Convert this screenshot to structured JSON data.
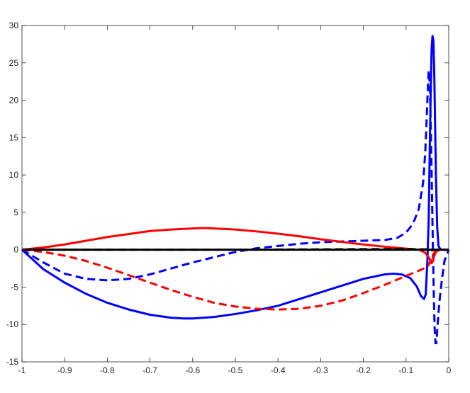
{
  "chart_data": {
    "type": "line",
    "title": "",
    "xlabel": "",
    "ylabel": "",
    "xlim": [
      -1,
      0
    ],
    "ylim": [
      -15,
      30
    ],
    "xticks": [
      -1,
      -0.9,
      -0.8,
      -0.7,
      -0.6,
      -0.5,
      -0.4,
      -0.3,
      -0.2,
      -0.1,
      0
    ],
    "xtick_labels": [
      "-1",
      "-0.9",
      "-0.8",
      "-0.7",
      "-0.6",
      "-0.5",
      "-0.4",
      "-0.3",
      "-0.2",
      "-0.1",
      "0"
    ],
    "yticks": [
      -15,
      -10,
      -5,
      0,
      5,
      10,
      15,
      20,
      25,
      30
    ],
    "ytick_labels": [
      "-15",
      "-10",
      "-5",
      "0",
      "5",
      "10",
      "15",
      "20",
      "25",
      "30"
    ],
    "grid": false,
    "legend": "none",
    "series": [
      {
        "color": "#0000ff",
        "style": "solid",
        "x": [
          -1,
          -0.95,
          -0.9,
          -0.85,
          -0.8,
          -0.75,
          -0.7,
          -0.65,
          -0.62,
          -0.6,
          -0.55,
          -0.5,
          -0.45,
          -0.4,
          -0.35,
          -0.3,
          -0.25,
          -0.2,
          -0.15,
          -0.13,
          -0.11,
          -0.09,
          -0.075,
          -0.065,
          -0.058,
          -0.054,
          -0.05,
          -0.047,
          -0.044,
          -0.042,
          -0.04,
          -0.038,
          -0.036,
          -0.034,
          -0.032,
          -0.03,
          -0.027,
          -0.024,
          -0.02,
          -0.015,
          -0.01,
          0
        ],
        "y": [
          0,
          -2.6,
          -4.4,
          -5.9,
          -7.1,
          -8.0,
          -8.7,
          -9.1,
          -9.2,
          -9.2,
          -9.0,
          -8.6,
          -8.1,
          -7.5,
          -6.6,
          -5.7,
          -4.8,
          -3.9,
          -3.3,
          -3.2,
          -3.3,
          -3.8,
          -4.9,
          -6.2,
          -6.6,
          -6.0,
          -1.5,
          4.0,
          15.0,
          22.0,
          27.0,
          28.6,
          28.0,
          24.0,
          17.0,
          10.0,
          3.0,
          0.5,
          0.1,
          0,
          0,
          0
        ]
      },
      {
        "color": "#0000ff",
        "style": "dashed",
        "x": [
          -1,
          -0.95,
          -0.9,
          -0.85,
          -0.8,
          -0.75,
          -0.7,
          -0.65,
          -0.6,
          -0.55,
          -0.5,
          -0.45,
          -0.4,
          -0.35,
          -0.3,
          -0.25,
          -0.2,
          -0.15,
          -0.12,
          -0.1,
          -0.09,
          -0.08,
          -0.07,
          -0.06,
          -0.055,
          -0.05,
          -0.047,
          -0.044,
          -0.04,
          -0.037,
          -0.035,
          -0.033,
          -0.031,
          -0.029,
          -0.026,
          -0.022,
          -0.016,
          -0.01,
          0
        ],
        "y": [
          0,
          -1.7,
          -3.2,
          -3.9,
          -4.1,
          -3.9,
          -3.3,
          -2.5,
          -1.7,
          -1.0,
          -0.3,
          0.2,
          0.5,
          0.8,
          1.0,
          1.1,
          1.2,
          1.3,
          1.6,
          2.3,
          3.0,
          4.0,
          5.5,
          9.0,
          13.0,
          20.0,
          24.0,
          22.0,
          10.0,
          0.0,
          -6.0,
          -10.5,
          -12.5,
          -12.5,
          -10.0,
          -7.0,
          -4.0,
          -1.5,
          0
        ]
      },
      {
        "color": "#ff0000",
        "style": "solid",
        "x": [
          -1,
          -0.95,
          -0.9,
          -0.85,
          -0.8,
          -0.75,
          -0.7,
          -0.65,
          -0.6,
          -0.575,
          -0.55,
          -0.5,
          -0.45,
          -0.4,
          -0.35,
          -0.3,
          -0.25,
          -0.2,
          -0.15,
          -0.1,
          -0.07,
          -0.055,
          -0.045,
          -0.04,
          -0.037,
          -0.034,
          -0.03,
          -0.025,
          -0.02,
          -0.01,
          0
        ],
        "y": [
          0,
          0.3,
          0.7,
          1.2,
          1.7,
          2.1,
          2.5,
          2.7,
          2.85,
          2.9,
          2.85,
          2.7,
          2.45,
          2.15,
          1.8,
          1.4,
          1.05,
          0.7,
          0.4,
          0.15,
          0.0,
          -0.4,
          -1.2,
          -1.8,
          -1.5,
          -0.8,
          -0.3,
          -0.1,
          0,
          0,
          0
        ]
      },
      {
        "color": "#ff0000",
        "style": "dashed",
        "x": [
          -1,
          -0.95,
          -0.9,
          -0.85,
          -0.8,
          -0.75,
          -0.7,
          -0.65,
          -0.6,
          -0.55,
          -0.5,
          -0.45,
          -0.4,
          -0.35,
          -0.3,
          -0.25,
          -0.2,
          -0.15,
          -0.1,
          -0.07,
          -0.05,
          -0.045,
          -0.04,
          -0.035,
          -0.03,
          -0.02,
          -0.01,
          0
        ],
        "y": [
          0,
          -0.3,
          -0.8,
          -1.5,
          -2.4,
          -3.4,
          -4.4,
          -5.4,
          -6.3,
          -7.1,
          -7.6,
          -7.9,
          -8.0,
          -7.9,
          -7.5,
          -6.8,
          -5.8,
          -4.7,
          -3.5,
          -2.8,
          -2.3,
          -1.8,
          -1.0,
          -0.5,
          -0.2,
          0,
          0,
          0
        ]
      },
      {
        "color": "#000000",
        "style": "solid",
        "x": [
          -1,
          -0.5,
          -0.1,
          -0.05,
          -0.04,
          -0.03,
          0
        ],
        "y": [
          0,
          0,
          0,
          0,
          0,
          0,
          0
        ]
      },
      {
        "color": "#000000",
        "style": "dashed",
        "x": [
          -1,
          -0.5,
          -0.3,
          -0.1,
          -0.05,
          -0.04,
          -0.03,
          0
        ],
        "y": [
          0,
          0,
          0.05,
          0.1,
          0.05,
          -0.1,
          0,
          0
        ]
      }
    ]
  }
}
